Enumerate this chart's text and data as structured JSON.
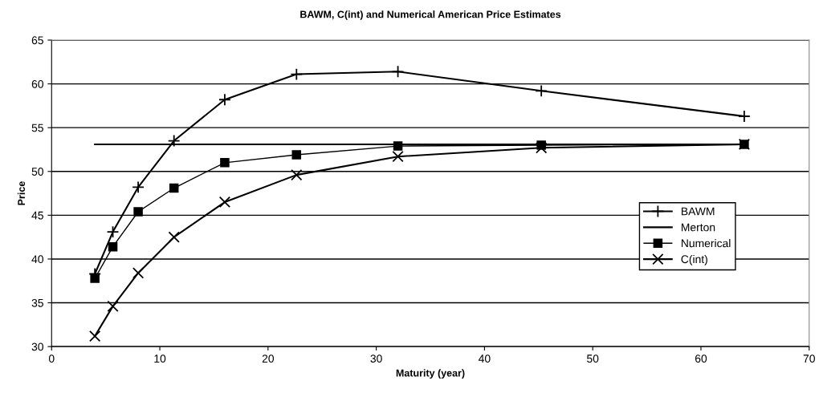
{
  "chart_data": {
    "type": "line",
    "title": "BAWM, C(int) and Numerical American Price Estimates",
    "xlabel": "Maturity (year)",
    "ylabel": "Price",
    "x": [
      4,
      5.66,
      8,
      11.31,
      16,
      22.63,
      32,
      45.25,
      64
    ],
    "series": [
      {
        "name": "BAWM",
        "color": "#000000",
        "marker": "cross",
        "values": [
          38.3,
          43.1,
          48.2,
          53.5,
          58.2,
          61.1,
          61.4,
          59.2,
          56.3
        ]
      },
      {
        "name": "Merton",
        "color": "#000000",
        "x": [
          4,
          64
        ],
        "values": [
          53.1,
          53.1
        ]
      },
      {
        "name": "Numerical",
        "color": "#000000",
        "marker": "square",
        "values": [
          37.8,
          41.4,
          45.4,
          48.1,
          51.0,
          51.9,
          52.9,
          53.0,
          53.1
        ]
      },
      {
        "name": "C(int)",
        "color": "#000000",
        "marker": "x",
        "values": [
          31.2,
          34.6,
          38.4,
          42.5,
          46.5,
          49.6,
          51.7,
          52.7,
          53.1
        ]
      }
    ],
    "xlim": [
      0,
      70
    ],
    "xticks": [
      0,
      10,
      20,
      30,
      40,
      50,
      60,
      70
    ],
    "ylim": [
      30,
      65
    ],
    "yticks": [
      30,
      35,
      40,
      45,
      50,
      55,
      60,
      65
    ],
    "grid": "y",
    "legend": "right",
    "line_style": "solid"
  }
}
